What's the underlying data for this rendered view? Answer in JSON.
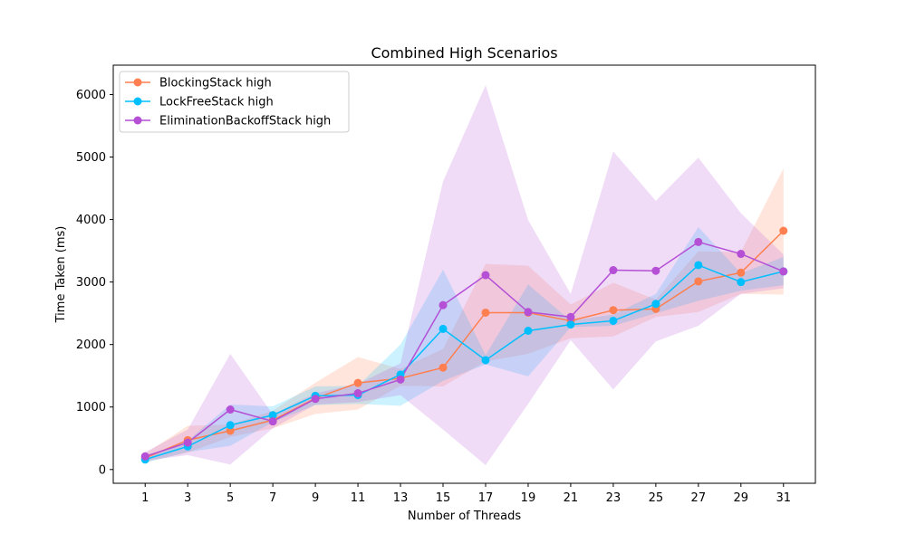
{
  "chart_data": {
    "type": "line",
    "title": "Combined High Scenarios",
    "xlabel": "Number of Threads",
    "ylabel": "Time Taken (ms)",
    "x": [
      1,
      3,
      5,
      7,
      9,
      11,
      13,
      15,
      17,
      19,
      21,
      23,
      25,
      27,
      29,
      31
    ],
    "xticks": [
      "1",
      "3",
      "5",
      "7",
      "9",
      "11",
      "13",
      "15",
      "17",
      "19",
      "21",
      "23",
      "25",
      "27",
      "29",
      "31"
    ],
    "xlim": [
      -0.5,
      32.5
    ],
    "ylim": [
      -220,
      6470
    ],
    "yticks": [
      0,
      1000,
      2000,
      3000,
      4000,
      5000,
      6000
    ],
    "ytick_labels": [
      "0",
      "1000",
      "2000",
      "3000",
      "4000",
      "5000",
      "6000"
    ],
    "legend_position": "top-left",
    "grid": false,
    "series": [
      {
        "name": "BlockingStack high",
        "color": "#ff7f50",
        "values": [
          185,
          470,
          620,
          790,
          1140,
          1385,
          1460,
          1630,
          2510,
          2510,
          2380,
          2550,
          2570,
          3010,
          3150,
          3820
        ],
        "band_low": [
          120,
          270,
          520,
          660,
          890,
          960,
          1340,
          1330,
          1730,
          1850,
          2100,
          2130,
          2440,
          2520,
          2810,
          2800
        ],
        "band_high": [
          250,
          700,
          720,
          940,
          1390,
          1800,
          1610,
          1930,
          3290,
          3260,
          2640,
          2990,
          2720,
          3490,
          3480,
          4820
        ]
      },
      {
        "name": "LockFreeStack high",
        "color": "#00bfff",
        "values": [
          160,
          370,
          710,
          870,
          1180,
          1190,
          1520,
          2250,
          1750,
          2220,
          2320,
          2380,
          2650,
          3270,
          3000,
          3170
        ],
        "band_low": [
          110,
          280,
          380,
          760,
          1030,
          1050,
          1020,
          1420,
          1680,
          1490,
          2280,
          2300,
          2500,
          2700,
          2860,
          2950
        ],
        "band_high": [
          210,
          460,
          1040,
          1010,
          1330,
          1340,
          2000,
          3200,
          1830,
          2960,
          2380,
          2480,
          2810,
          3880,
          3140,
          3400
        ]
      },
      {
        "name": "EliminationBackoffStack high",
        "color": "#b44fd6",
        "values": [
          210,
          430,
          960,
          770,
          1130,
          1220,
          1440,
          2630,
          3110,
          2520,
          2440,
          3190,
          3180,
          3640,
          3450,
          3170
        ],
        "band_low": [
          140,
          230,
          80,
          660,
          1040,
          1080,
          1190,
          640,
          70,
          1050,
          2070,
          1280,
          2050,
          2300,
          2810,
          2900
        ],
        "band_high": [
          280,
          640,
          1850,
          880,
          1220,
          1370,
          1700,
          4610,
          6150,
          3990,
          2810,
          5090,
          4300,
          4990,
          4100,
          3440
        ]
      }
    ]
  }
}
